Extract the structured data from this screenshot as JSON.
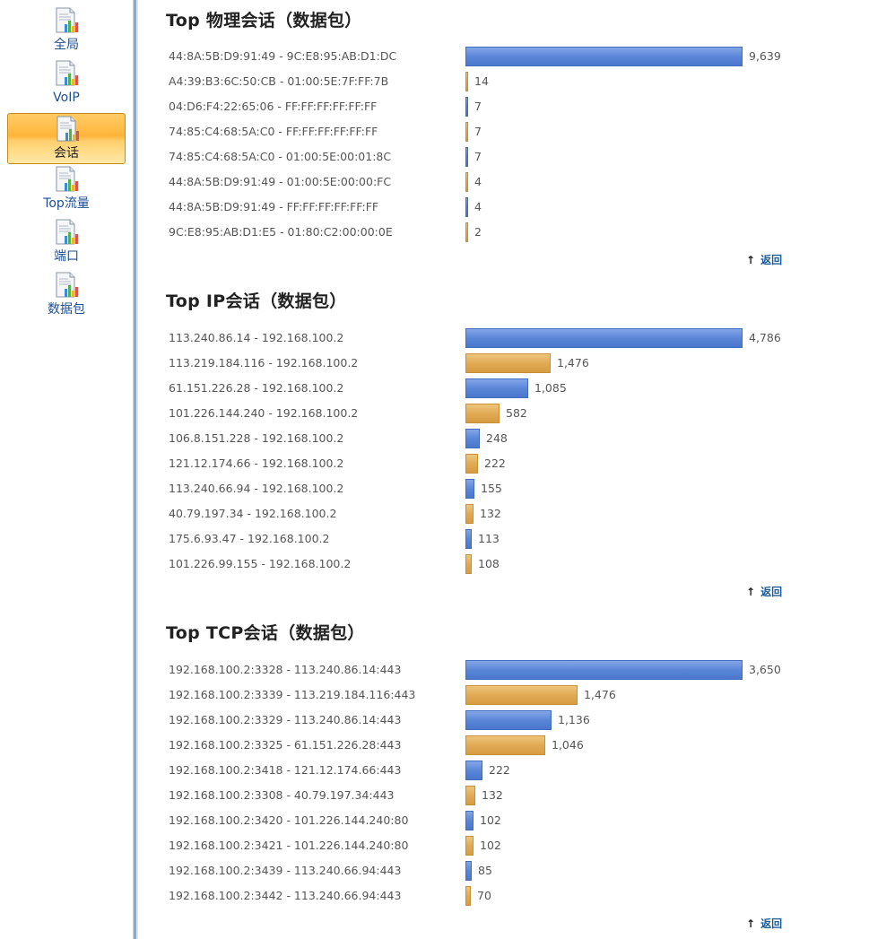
{
  "sidebar": {
    "items": [
      {
        "label": "全局",
        "icon": "report-chart-icon",
        "active": false
      },
      {
        "label": "VoIP",
        "icon": "report-chart-icon",
        "active": false
      },
      {
        "label": "会话",
        "icon": "report-chart-icon",
        "active": true
      },
      {
        "label": "Top流量",
        "icon": "report-chart-icon",
        "active": false
      },
      {
        "label": "端口",
        "icon": "report-chart-icon",
        "active": false
      },
      {
        "label": "数据包",
        "icon": "report-chart-icon",
        "active": false
      }
    ]
  },
  "colors": {
    "blue_bar": "#5b86d8",
    "gold_bar": "#e0aa55",
    "link": "#1d5d99",
    "active_nav": "#ffb43a"
  },
  "back_label": "返回",
  "sections": [
    {
      "title": "Top 物理会话（数据包）",
      "rows": [
        {
          "label": "44:8A:5B:D9:91:49 - 9C:E8:95:AB:D1:DC",
          "value": 9639,
          "display": "9,639"
        },
        {
          "label": "A4:39:B3:6C:50:CB - 01:00:5E:7F:FF:7B",
          "value": 14,
          "display": "14"
        },
        {
          "label": "04:D6:F4:22:65:06 - FF:FF:FF:FF:FF:FF",
          "value": 7,
          "display": "7"
        },
        {
          "label": "74:85:C4:68:5A:C0 - FF:FF:FF:FF:FF:FF",
          "value": 7,
          "display": "7"
        },
        {
          "label": "74:85:C4:68:5A:C0 - 01:00:5E:00:01:8C",
          "value": 7,
          "display": "7"
        },
        {
          "label": "44:8A:5B:D9:91:49 - 01:00:5E:00:00:FC",
          "value": 4,
          "display": "4"
        },
        {
          "label": "44:8A:5B:D9:91:49 - FF:FF:FF:FF:FF:FF",
          "value": 4,
          "display": "4"
        },
        {
          "label": "9C:E8:95:AB:D1:E5 - 01:80:C2:00:00:0E",
          "value": 2,
          "display": "2"
        }
      ]
    },
    {
      "title": "Top IP会话（数据包）",
      "rows": [
        {
          "label": "113.240.86.14 - 192.168.100.2",
          "value": 4786,
          "display": "4,786"
        },
        {
          "label": "113.219.184.116 - 192.168.100.2",
          "value": 1476,
          "display": "1,476"
        },
        {
          "label": "61.151.226.28 - 192.168.100.2",
          "value": 1085,
          "display": "1,085"
        },
        {
          "label": "101.226.144.240 - 192.168.100.2",
          "value": 582,
          "display": "582"
        },
        {
          "label": "106.8.151.228 - 192.168.100.2",
          "value": 248,
          "display": "248"
        },
        {
          "label": "121.12.174.66 - 192.168.100.2",
          "value": 222,
          "display": "222"
        },
        {
          "label": "113.240.66.94 - 192.168.100.2",
          "value": 155,
          "display": "155"
        },
        {
          "label": "40.79.197.34 - 192.168.100.2",
          "value": 132,
          "display": "132"
        },
        {
          "label": "175.6.93.47 - 192.168.100.2",
          "value": 113,
          "display": "113"
        },
        {
          "label": "101.226.99.155 - 192.168.100.2",
          "value": 108,
          "display": "108"
        }
      ]
    },
    {
      "title": "Top TCP会话（数据包）",
      "rows": [
        {
          "label": "192.168.100.2:3328 - 113.240.86.14:443",
          "value": 3650,
          "display": "3,650"
        },
        {
          "label": "192.168.100.2:3339 - 113.219.184.116:443",
          "value": 1476,
          "display": "1,476"
        },
        {
          "label": "192.168.100.2:3329 - 113.240.86.14:443",
          "value": 1136,
          "display": "1,136"
        },
        {
          "label": "192.168.100.2:3325 - 61.151.226.28:443",
          "value": 1046,
          "display": "1,046"
        },
        {
          "label": "192.168.100.2:3418 - 121.12.174.66:443",
          "value": 222,
          "display": "222"
        },
        {
          "label": "192.168.100.2:3308 - 40.79.197.34:443",
          "value": 132,
          "display": "132"
        },
        {
          "label": "192.168.100.2:3420 - 101.226.144.240:80",
          "value": 102,
          "display": "102"
        },
        {
          "label": "192.168.100.2:3421 - 101.226.144.240:80",
          "value": 102,
          "display": "102"
        },
        {
          "label": "192.168.100.2:3439 - 113.240.66.94:443",
          "value": 85,
          "display": "85"
        },
        {
          "label": "192.168.100.2:3442 - 113.240.66.94:443",
          "value": 70,
          "display": "70"
        }
      ]
    }
  ]
}
